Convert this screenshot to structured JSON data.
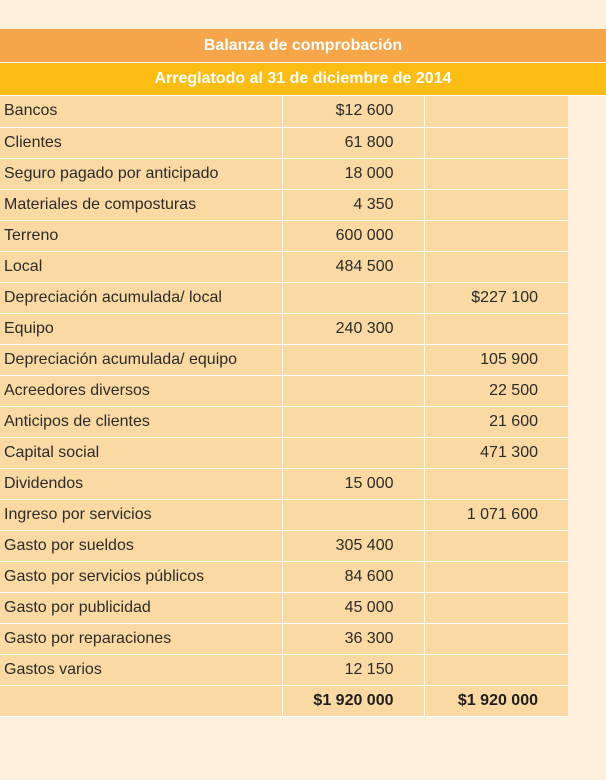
{
  "title": "Balanza de comprobación",
  "subtitle": "Arreglatodo al 31 de diciembre de 2014",
  "rows": [
    {
      "account": "Bancos",
      "debit": "$12 600",
      "credit": ""
    },
    {
      "account": "Clientes",
      "debit": "61 800",
      "credit": ""
    },
    {
      "account": "Seguro pagado por anticipado",
      "debit": "18 000",
      "credit": ""
    },
    {
      "account": "Materiales de composturas",
      "debit": "4 350",
      "credit": ""
    },
    {
      "account": "Terreno",
      "debit": "600 000",
      "credit": ""
    },
    {
      "account": "Local",
      "debit": "484 500",
      "credit": ""
    },
    {
      "account": "Depreciación acumulada/ local",
      "debit": "",
      "credit": "$227 100"
    },
    {
      "account": "Equipo",
      "debit": "240 300",
      "credit": ""
    },
    {
      "account": "Depreciación acumulada/ equipo",
      "debit": "",
      "credit": "105 900"
    },
    {
      "account": "Acreedores diversos",
      "debit": "",
      "credit": "22 500"
    },
    {
      "account": "Anticipos de clientes",
      "debit": "",
      "credit": "21 600"
    },
    {
      "account": "Capital social",
      "debit": "",
      "credit": "471 300"
    },
    {
      "account": "Dividendos",
      "debit": "15 000",
      "credit": ""
    },
    {
      "account": "Ingreso por servicios",
      "debit": "",
      "credit": "1 071 600"
    },
    {
      "account": "Gasto por sueldos",
      "debit": "305 400",
      "credit": ""
    },
    {
      "account": "Gasto por servicios públicos",
      "debit": "84 600",
      "credit": ""
    },
    {
      "account": "Gasto por publicidad",
      "debit": "45 000",
      "credit": ""
    },
    {
      "account": "Gasto por reparaciones",
      "debit": "36 300",
      "credit": ""
    },
    {
      "account": "Gastos varios",
      "debit": "12 150",
      "credit": ""
    }
  ],
  "totals": {
    "debit": "$1 920 000",
    "credit": "$1 920 000"
  }
}
